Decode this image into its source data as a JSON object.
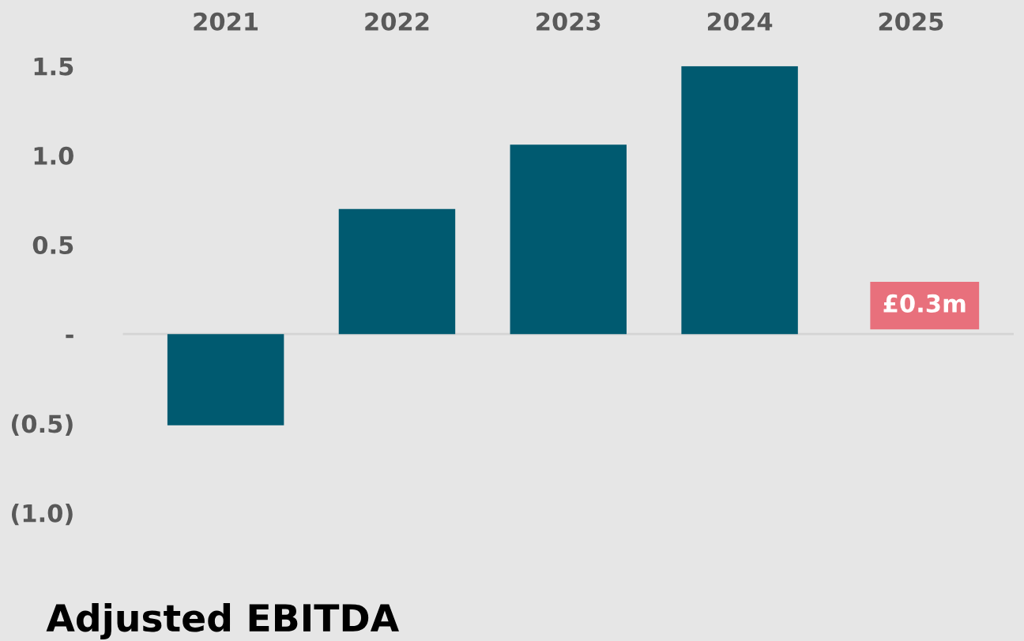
{
  "chart_data": {
    "type": "bar",
    "title": "Adjusted EBITDA",
    "categories": [
      "2021",
      "2022",
      "2023",
      "2024",
      "2025"
    ],
    "values": [
      -0.51,
      0.7,
      1.06,
      1.5,
      null
    ],
    "color": "#005a70",
    "ylim": [
      -1.0,
      1.5
    ],
    "yticks": [
      {
        "value": -1.0,
        "label": "(1.0)"
      },
      {
        "value": -0.5,
        "label": "(0.5)"
      },
      {
        "value": 0,
        "label": "-"
      },
      0.5,
      {
        "value": 1.0,
        "label": "1.0"
      },
      1.5
    ],
    "annotations": [
      "£0.3m"
    ],
    "ref_lines": [
      {
        "axis": "y",
        "value": 0,
        "color": "#d4d4d4"
      }
    ]
  }
}
